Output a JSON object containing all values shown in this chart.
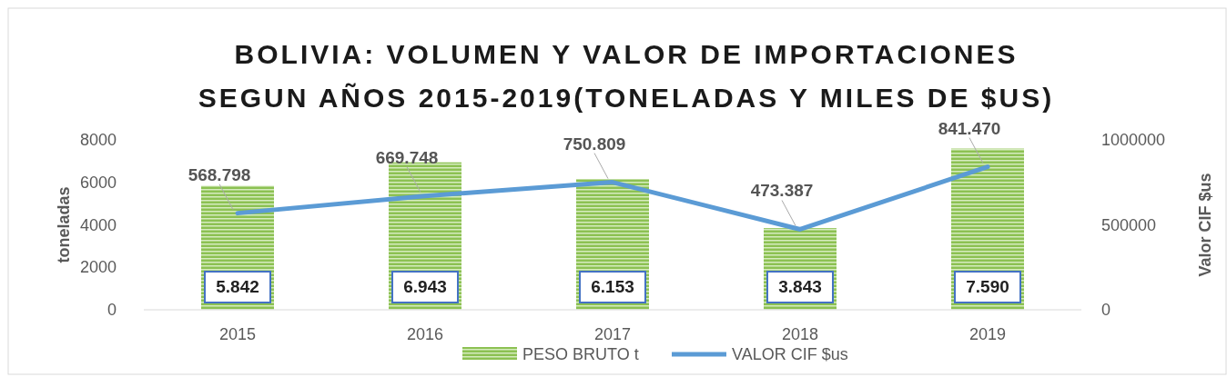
{
  "chart_data": {
    "type": "bar",
    "title": "BOLIVIA: VOLUMEN Y VALOR DE IMPORTACIONES SEGUN AÑOS 2015-2019(TONELADAS Y MILES DE $US)",
    "categories": [
      "2015",
      "2016",
      "2017",
      "2018",
      "2019"
    ],
    "ylabel": "toneladas",
    "y2label": "Valor CIF $us",
    "ylim": [
      0,
      8000
    ],
    "yticks": [
      0,
      2000,
      4000,
      6000,
      8000
    ],
    "y2lim": [
      0,
      1000000
    ],
    "y2ticks": [
      0,
      500000,
      1000000
    ],
    "legend": "bottom",
    "grid": false,
    "series": [
      {
        "name": "PESO BRUTO t",
        "color": "#8cc152",
        "values": [
          5842,
          6943,
          6153,
          3843,
          7590
        ],
        "value_labels": [
          "5.842",
          "6.943",
          "6.153",
          "3.843",
          "7.590"
        ]
      },
      {
        "name": "VALOR CIF $us",
        "type": "line",
        "axis": "y2",
        "color": "#5b9bd5",
        "values": [
          568798,
          669748,
          750809,
          473387,
          841470
        ],
        "value_labels": [
          "568.798",
          "669.748",
          "750.809",
          "473.387",
          "841.470"
        ]
      }
    ]
  }
}
